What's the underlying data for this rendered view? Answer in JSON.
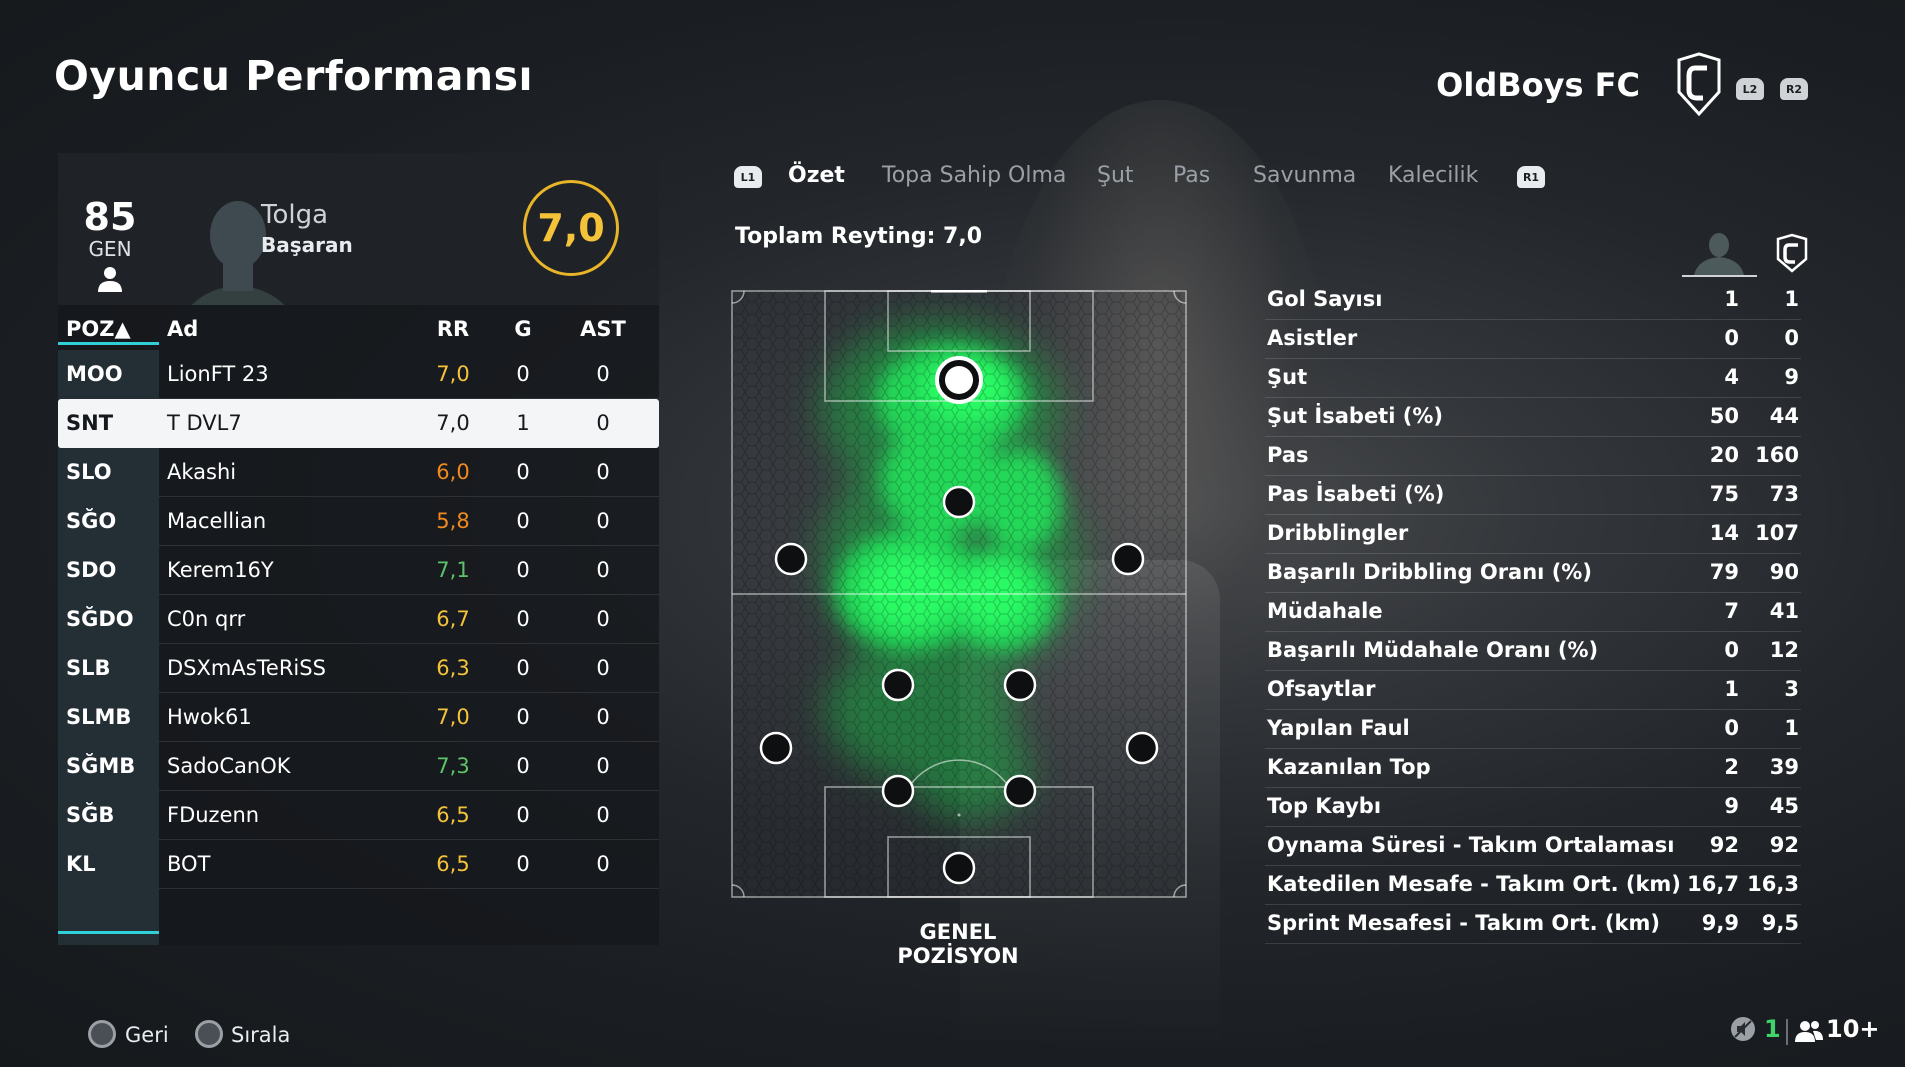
{
  "page_title": "Oyuncu Performansı",
  "club_name": "OldBoys FC",
  "triggers": {
    "left": "L2",
    "right": "R2"
  },
  "player": {
    "overall": "85",
    "overall_label": "GEN",
    "first_name": "Tolga",
    "last_name": "Başaran",
    "rating": "7,0"
  },
  "table": {
    "headers": {
      "pos": "POZ▲",
      "name": "Ad",
      "rr": "RR",
      "g": "G",
      "ast": "AST"
    },
    "rows": [
      {
        "pos": "MOO",
        "name": "LionFT 23",
        "rr": "7,0",
        "g": "0",
        "ast": "0",
        "rr_color": "#f4c33a"
      },
      {
        "pos": "SNT",
        "name": "T DVL7",
        "rr": "7,0",
        "g": "1",
        "ast": "0",
        "rr_color": "#15181c"
      },
      {
        "pos": "SLO",
        "name": "Akashi",
        "rr": "6,0",
        "g": "0",
        "ast": "0",
        "rr_color": "#f08a1c"
      },
      {
        "pos": "SĞO",
        "name": "Macellian",
        "rr": "5,8",
        "g": "0",
        "ast": "0",
        "rr_color": "#f08a1c"
      },
      {
        "pos": "SDO",
        "name": "Kerem16Y",
        "rr": "7,1",
        "g": "0",
        "ast": "0",
        "rr_color": "#5ec26a"
      },
      {
        "pos": "SĞDO",
        "name": "C0n qrr",
        "rr": "6,7",
        "g": "0",
        "ast": "0",
        "rr_color": "#f4c33a"
      },
      {
        "pos": "SLB",
        "name": "DSXmAsTeRiSS",
        "rr": "6,3",
        "g": "0",
        "ast": "0",
        "rr_color": "#f4c33a"
      },
      {
        "pos": "SLMB",
        "name": "Hwok61",
        "rr": "7,0",
        "g": "0",
        "ast": "0",
        "rr_color": "#f4c33a"
      },
      {
        "pos": "SĞMB",
        "name": "SadoCanOK",
        "rr": "7,3",
        "g": "0",
        "ast": "0",
        "rr_color": "#5ec26a"
      },
      {
        "pos": "SĞB",
        "name": "FDuzenn",
        "rr": "6,5",
        "g": "0",
        "ast": "0",
        "rr_color": "#f4c33a"
      },
      {
        "pos": "KL",
        "name": "BOT",
        "rr": "6,5",
        "g": "0",
        "ast": "0",
        "rr_color": "#f4c33a"
      }
    ]
  },
  "tabs": {
    "left_bumper": "L1",
    "right_bumper": "R1",
    "items": [
      "Özet",
      "Topa Sahip Olma",
      "Şut",
      "Pas",
      "Savunma",
      "Kalecilik"
    ],
    "active": "Özet"
  },
  "total_rating": "Toplam Reyting: 7,0",
  "position_label": "GENEL POZİSYON",
  "stats": [
    {
      "label": "Gol Sayısı",
      "player": "1",
      "team": "1"
    },
    {
      "label": "Asistler",
      "player": "0",
      "team": "0"
    },
    {
      "label": "Şut",
      "player": "4",
      "team": "9"
    },
    {
      "label": "Şut İsabeti (%)",
      "player": "50",
      "team": "44"
    },
    {
      "label": "Pas",
      "player": "20",
      "team": "160"
    },
    {
      "label": "Pas İsabeti (%)",
      "player": "75",
      "team": "73"
    },
    {
      "label": "Dribblingler",
      "player": "14",
      "team": "107"
    },
    {
      "label": "Başarılı Dribbling Oranı (%)",
      "player": "79",
      "team": "90"
    },
    {
      "label": "Müdahale",
      "player": "7",
      "team": "41"
    },
    {
      "label": "Başarılı Müdahale Oranı (%)",
      "player": "0",
      "team": "12"
    },
    {
      "label": "Ofsaytlar",
      "player": "1",
      "team": "3"
    },
    {
      "label": "Yapılan Faul",
      "player": "0",
      "team": "1"
    },
    {
      "label": "Kazanılan Top",
      "player": "2",
      "team": "39"
    },
    {
      "label": "Top Kaybı",
      "player": "9",
      "team": "45"
    },
    {
      "label": "Oynama Süresi - Takım Ortalaması",
      "player": "92",
      "team": "92"
    },
    {
      "label": "Katedilen Mesafe - Takım Ort. (km)",
      "player": "16,7",
      "team": "16,3"
    },
    {
      "label": "Sprint Mesafesi - Takım Ort. (km)",
      "player": "9,9",
      "team": "9,5"
    }
  ],
  "footer": {
    "back": "Geri",
    "sort": "Sırala",
    "count": "1",
    "players": "10+"
  },
  "colors": {
    "accent": "#2fd0d8",
    "rating_ring": "#e9b528",
    "heat": "#2bff66",
    "highlight_row": "#f4f5f6"
  }
}
